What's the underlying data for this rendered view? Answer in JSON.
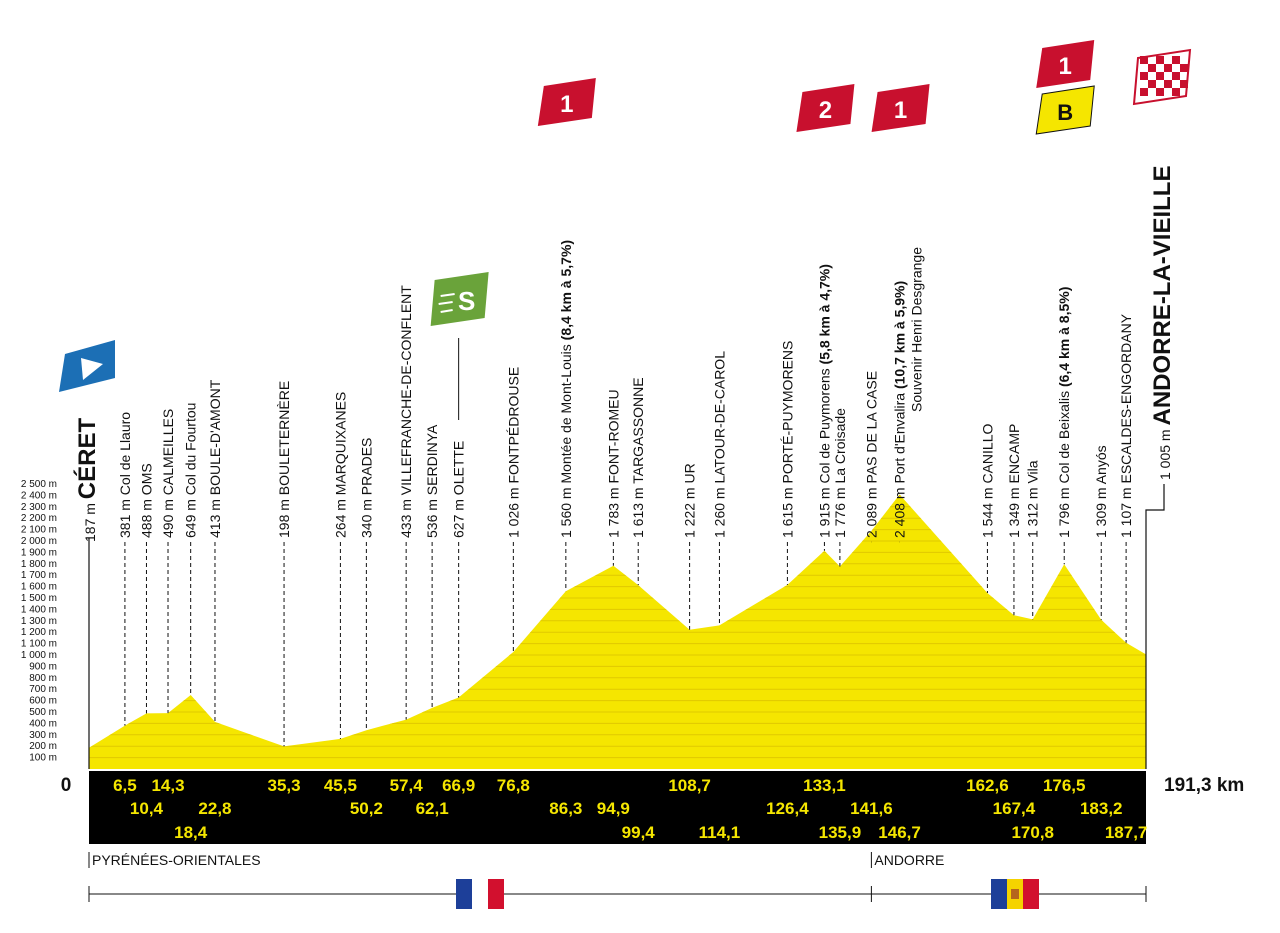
{
  "chart_data": {
    "type": "area",
    "title": "",
    "xlabel": "",
    "ylabel": "",
    "xlim": [
      0,
      191.3
    ],
    "ylim": [
      0,
      2500
    ],
    "y_unit": "m",
    "y_ticks": [
      "100 m",
      "200 m",
      "300 m",
      "400 m",
      "500 m",
      "600 m",
      "700 m",
      "800 m",
      "900 m",
      "1 000 m",
      "1 100 m",
      "1 200 m",
      "1 300 m",
      "1 400 m",
      "1 500 m",
      "1 600 m",
      "1 700 m",
      "1 800 m",
      "1 900 m",
      "2 000 m",
      "2 100 m",
      "2 200 m",
      "2 300 m",
      "2 400 m",
      "2 500 m"
    ],
    "start_label": "0",
    "end_label": "191,3 km",
    "x": [
      0,
      6.5,
      10.4,
      14.3,
      18.4,
      22.8,
      35.3,
      45.5,
      50.2,
      57.4,
      62.1,
      66.9,
      76.8,
      86.3,
      94.9,
      99.4,
      108.7,
      114.1,
      126.4,
      133.1,
      135.9,
      141.6,
      146.7,
      162.6,
      167.4,
      170.8,
      176.5,
      183.2,
      187.7,
      191.3
    ],
    "y": [
      187,
      381,
      488,
      490,
      649,
      413,
      198,
      264,
      340,
      433,
      536,
      627,
      1026,
      1560,
      1783,
      1613,
      1222,
      1260,
      1615,
      1915,
      1776,
      2089,
      2408,
      1544,
      1349,
      1312,
      1796,
      1309,
      1107,
      1005
    ],
    "waypoints": [
      {
        "km": 0,
        "km_label": "",
        "alt": "187 m",
        "name": "CÉRET",
        "detail": "",
        "finish_style": "start"
      },
      {
        "km": 6.5,
        "km_label": "6,5",
        "alt": "381 m",
        "name": "Col de Llauro",
        "detail": ""
      },
      {
        "km": 10.4,
        "km_label": "10,4",
        "alt": "488 m",
        "name": "OMS",
        "detail": ""
      },
      {
        "km": 14.3,
        "km_label": "14,3",
        "alt": "490 m",
        "name": "CALMEILLES",
        "detail": ""
      },
      {
        "km": 18.4,
        "km_label": "18,4",
        "alt": "649 m",
        "name": "Col du Fourtou",
        "detail": ""
      },
      {
        "km": 22.8,
        "km_label": "22,8",
        "alt": "413 m",
        "name": "BOULE-D'AMONT",
        "detail": ""
      },
      {
        "km": 35.3,
        "km_label": "35,3",
        "alt": "198 m",
        "name": "BOULETERNÈRE",
        "detail": ""
      },
      {
        "km": 45.5,
        "km_label": "45,5",
        "alt": "264 m",
        "name": "MARQUIXANES",
        "detail": ""
      },
      {
        "km": 50.2,
        "km_label": "50,2",
        "alt": "340 m",
        "name": "PRADES",
        "detail": ""
      },
      {
        "km": 57.4,
        "km_label": "57,4",
        "alt": "433 m",
        "name": "VILLEFRANCHE-DE-CONFLENT",
        "detail": ""
      },
      {
        "km": 62.1,
        "km_label": "62,1",
        "alt": "536 m",
        "name": "SERDINYA",
        "detail": ""
      },
      {
        "km": 66.9,
        "km_label": "66,9",
        "alt": "627 m",
        "name": "OLETTE",
        "detail": ""
      },
      {
        "km": 76.8,
        "km_label": "76,8",
        "alt": "1 026 m",
        "name": "FONTPÉDROUSE",
        "detail": ""
      },
      {
        "km": 86.3,
        "km_label": "86,3",
        "alt": "1 560 m",
        "name": "Montée de Mont-Louis",
        "detail": "(8,4 km à 5,7%)"
      },
      {
        "km": 94.9,
        "km_label": "94,9",
        "alt": "1 783 m",
        "name": "FONT-ROMEU",
        "detail": ""
      },
      {
        "km": 99.4,
        "km_label": "99,4",
        "alt": "1 613 m",
        "name": "TARGASSONNE",
        "detail": ""
      },
      {
        "km": 108.7,
        "km_label": "108,7",
        "alt": "1 222 m",
        "name": "UR",
        "detail": ""
      },
      {
        "km": 114.1,
        "km_label": "114,1",
        "alt": "1 260 m",
        "name": "LATOUR-DE-CAROL",
        "detail": ""
      },
      {
        "km": 126.4,
        "km_label": "126,4",
        "alt": "1 615 m",
        "name": "PORTÉ-PUYMORENS",
        "detail": ""
      },
      {
        "km": 133.1,
        "km_label": "133,1",
        "alt": "1 915 m",
        "name": "Col de Puymorens",
        "detail": "(5,8 km à 4,7%)"
      },
      {
        "km": 135.9,
        "km_label": "135,9",
        "alt": "1 776 m",
        "name": "La Croisade",
        "detail": ""
      },
      {
        "km": 141.6,
        "km_label": "141,6",
        "alt": "2 089 m",
        "name": "PAS DE LA CASE",
        "detail": ""
      },
      {
        "km": 146.7,
        "km_label": "146,7",
        "alt": "2 408 m",
        "name": "Port d'Envalira",
        "detail": "(10,7 km à 5,9%)",
        "line2": "Souvenir Henri Desgrange"
      },
      {
        "km": 162.6,
        "km_label": "162,6",
        "alt": "1 544 m",
        "name": "CANILLO",
        "detail": ""
      },
      {
        "km": 167.4,
        "km_label": "167,4",
        "alt": "1 349 m",
        "name": "ENCAMP",
        "detail": ""
      },
      {
        "km": 170.8,
        "km_label": "170,8",
        "alt": "1 312 m",
        "name": "Vila",
        "detail": ""
      },
      {
        "km": 176.5,
        "km_label": "176,5",
        "alt": "1 796 m",
        "name": "Col de Beixalis",
        "detail": "(6,4 km à 8,5%)"
      },
      {
        "km": 183.2,
        "km_label": "183,2",
        "alt": "1 309 m",
        "name": "Anyós",
        "detail": ""
      },
      {
        "km": 187.7,
        "km_label": "187,7",
        "alt": "1 107 m",
        "name": "ESCALDES-ENGORDANY",
        "detail": ""
      },
      {
        "km": 191.3,
        "km_label": "",
        "alt": "1 005 m",
        "name": "ANDORRE-LA-VIEILLE",
        "detail": "",
        "finish_style": "finish"
      }
    ],
    "climbs": [
      {
        "km": 86.3,
        "category": "1",
        "color": "#c8102e"
      },
      {
        "km": 133.1,
        "category": "2",
        "color": "#c8102e"
      },
      {
        "km": 146.7,
        "category": "1",
        "color": "#c8102e"
      },
      {
        "km": 176.5,
        "category": "1",
        "color": "#c8102e",
        "bonus": "B"
      }
    ],
    "sprint": {
      "km": 66.9,
      "symbol": "S",
      "color": "#6aa33a"
    },
    "regions": [
      {
        "name": "PYRÉNÉES-ORIENTALES",
        "start_km": 0
      },
      {
        "name": "ANDORRE",
        "start_km": 141.6
      }
    ],
    "colors": {
      "profile_fill": "#f5e600",
      "profile_stripe": "#e0c900",
      "km_band": "#000000",
      "km_text": "#f5e600",
      "start_flag": "#1c6fb5"
    }
  }
}
